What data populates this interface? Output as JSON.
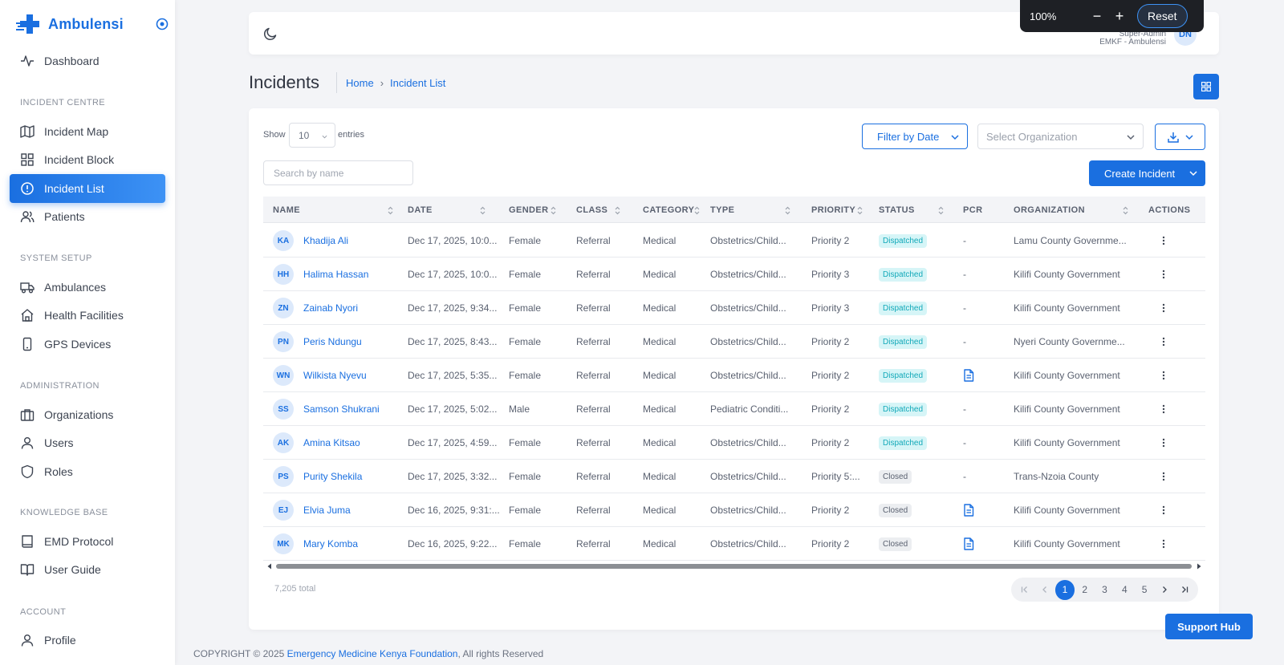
{
  "brand": {
    "name": "Ambulensi"
  },
  "sidebar": {
    "items": [
      {
        "label": "Dashboard",
        "icon": "activity-icon"
      },
      {
        "section": "INCIDENT CENTRE"
      },
      {
        "label": "Incident Map",
        "icon": "map-icon"
      },
      {
        "label": "Incident Block",
        "icon": "grid-icon"
      },
      {
        "label": "Incident List",
        "icon": "alert-circle-icon",
        "active": true
      },
      {
        "label": "Patients",
        "icon": "users-icon"
      },
      {
        "section": "SYSTEM SETUP"
      },
      {
        "label": "Ambulances",
        "icon": "truck-icon"
      },
      {
        "label": "Health Facilities",
        "icon": "home-icon"
      },
      {
        "label": "GPS Devices",
        "icon": "device-icon"
      },
      {
        "section": "ADMINISTRATION"
      },
      {
        "label": "Organizations",
        "icon": "briefcase-icon"
      },
      {
        "label": "Users",
        "icon": "user-icon"
      },
      {
        "label": "Roles",
        "icon": "shield-icon"
      },
      {
        "section": "KNOWLEDGE BASE"
      },
      {
        "label": "EMD Protocol",
        "icon": "book-icon"
      },
      {
        "label": "User Guide",
        "icon": "book-open-icon"
      },
      {
        "section": "ACCOUNT"
      },
      {
        "label": "Profile",
        "icon": "user-icon"
      }
    ]
  },
  "topbar": {
    "user_role": "Super-Admin",
    "user_org": "EMKF - Ambulensi",
    "user_initials": "DN"
  },
  "zoom": {
    "level": "100%",
    "minus": "−",
    "plus": "+",
    "reset": "Reset"
  },
  "header": {
    "title": "Incidents",
    "breadcrumb": [
      "Home",
      "Incident List"
    ]
  },
  "controls": {
    "show_label": "Show",
    "entries_value": "10",
    "entries_label": "entries",
    "filter_date": "Filter by Date",
    "org_placeholder": "Select Organization",
    "search_placeholder": "Search by name",
    "create_label": "Create Incident"
  },
  "table": {
    "columns": [
      "NAME",
      "DATE",
      "GENDER",
      "CLASS",
      "CATEGORY",
      "TYPE",
      "PRIORITY",
      "STATUS",
      "PCR",
      "ORGANIZATION",
      "ACTIONS"
    ],
    "rows": [
      {
        "initials": "KA",
        "name": "Khadija Ali",
        "date": "Dec 17, 2025, 10:0...",
        "gender": "Female",
        "class": "Referral",
        "category": "Medical",
        "type": "Obstetrics/Child...",
        "priority": "Priority 2",
        "status": "Dispatched",
        "pcr": "-",
        "organization": "Lamu County Governme..."
      },
      {
        "initials": "HH",
        "name": "Halima Hassan",
        "date": "Dec 17, 2025, 10:0...",
        "gender": "Female",
        "class": "Referral",
        "category": "Medical",
        "type": "Obstetrics/Child...",
        "priority": "Priority 3",
        "status": "Dispatched",
        "pcr": "-",
        "organization": "Kilifi County Government"
      },
      {
        "initials": "ZN",
        "name": "Zainab Nyori",
        "date": "Dec 17, 2025, 9:34...",
        "gender": "Female",
        "class": "Referral",
        "category": "Medical",
        "type": "Obstetrics/Child...",
        "priority": "Priority 3",
        "status": "Dispatched",
        "pcr": "-",
        "organization": "Kilifi County Government"
      },
      {
        "initials": "PN",
        "name": "Peris Ndungu",
        "date": "Dec 17, 2025, 8:43...",
        "gender": "Female",
        "class": "Referral",
        "category": "Medical",
        "type": "Obstetrics/Child...",
        "priority": "Priority 2",
        "status": "Dispatched",
        "pcr": "-",
        "organization": "Nyeri County Governme..."
      },
      {
        "initials": "WN",
        "name": "Wilkista Nyevu",
        "date": "Dec 17, 2025, 5:35...",
        "gender": "Female",
        "class": "Referral",
        "category": "Medical",
        "type": "Obstetrics/Child...",
        "priority": "Priority 2",
        "status": "Dispatched",
        "pcr": "doc",
        "organization": "Kilifi County Government"
      },
      {
        "initials": "SS",
        "name": "Samson Shukrani",
        "date": "Dec 17, 2025, 5:02...",
        "gender": "Male",
        "class": "Referral",
        "category": "Medical",
        "type": "Pediatric Conditi...",
        "priority": "Priority 2",
        "status": "Dispatched",
        "pcr": "-",
        "organization": "Kilifi County Government"
      },
      {
        "initials": "AK",
        "name": "Amina Kitsao",
        "date": "Dec 17, 2025, 4:59...",
        "gender": "Female",
        "class": "Referral",
        "category": "Medical",
        "type": "Obstetrics/Child...",
        "priority": "Priority 2",
        "status": "Dispatched",
        "pcr": "-",
        "organization": "Kilifi County Government"
      },
      {
        "initials": "PS",
        "name": "Purity Shekila",
        "date": "Dec 17, 2025, 3:32...",
        "gender": "Female",
        "class": "Referral",
        "category": "Medical",
        "type": "Obstetrics/Child...",
        "priority": "Priority 5:...",
        "status": "Closed",
        "pcr": "-",
        "organization": "Trans-Nzoia County"
      },
      {
        "initials": "EJ",
        "name": "Elvia Juma",
        "date": "Dec 16, 2025, 9:31:...",
        "gender": "Female",
        "class": "Referral",
        "category": "Medical",
        "type": "Obstetrics/Child...",
        "priority": "Priority 2",
        "status": "Closed",
        "pcr": "doc",
        "organization": "Kilifi County Government"
      },
      {
        "initials": "MK",
        "name": "Mary Komba",
        "date": "Dec 16, 2025, 9:22...",
        "gender": "Female",
        "class": "Referral",
        "category": "Medical",
        "type": "Obstetrics/Child...",
        "priority": "Priority 2",
        "status": "Closed",
        "pcr": "doc",
        "organization": "Kilifi County Government"
      }
    ]
  },
  "footer_table": {
    "total": "7,205 total",
    "pages": [
      "1",
      "2",
      "3",
      "4",
      "5"
    ],
    "current_page": "1"
  },
  "footer": {
    "copyright": "COPYRIGHT © 2025",
    "link": "Emergency Medicine Kenya Foundation",
    "suffix": ", All rights Reserved"
  },
  "support": {
    "label": "Support Hub"
  },
  "colors": {
    "accent": "#1a6fe0",
    "dispatched": "#13a9b9",
    "closed": "#5a6170",
    "zoom_widget": "#1e2025"
  }
}
